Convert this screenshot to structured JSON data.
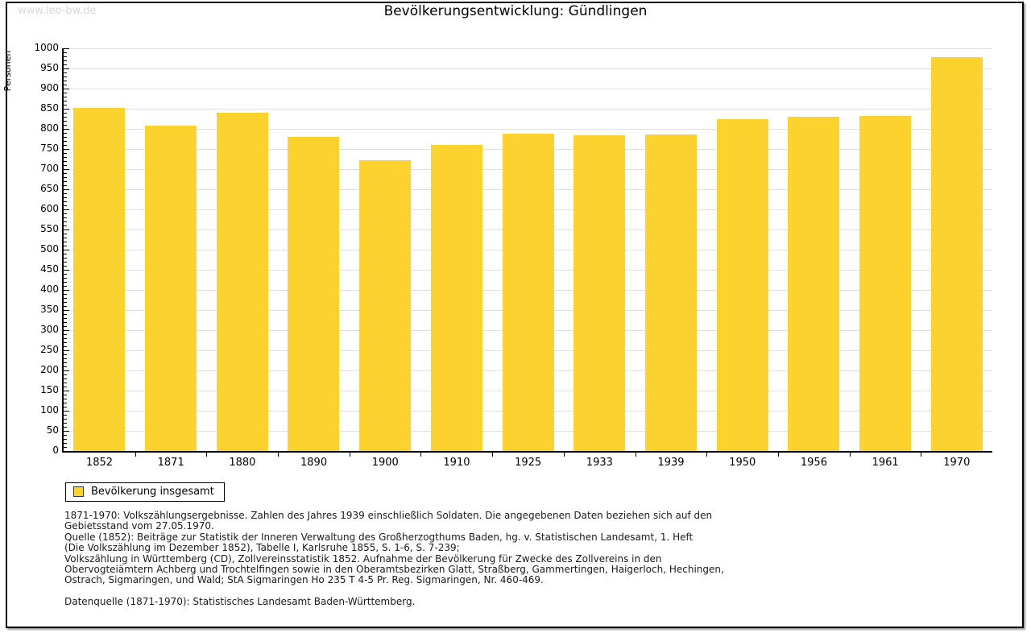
{
  "watermark": "www.leo-bw.de",
  "title": "Bevölkerungsentwicklung: Gündlingen",
  "chart_data": {
    "type": "bar",
    "title": "Bevölkerungsentwicklung: Gündlingen",
    "xlabel": "",
    "ylabel": "Personen",
    "categories": [
      "1852",
      "1871",
      "1880",
      "1890",
      "1900",
      "1910",
      "1925",
      "1933",
      "1939",
      "1950",
      "1956",
      "1961",
      "1970"
    ],
    "values": [
      852,
      808,
      840,
      780,
      722,
      761,
      789,
      785,
      787,
      824,
      831,
      833,
      978
    ],
    "series_name": "Bevölkerung insgesamt",
    "ylim": [
      0,
      1000
    ],
    "ytick_step": 50,
    "yminor_step": 10,
    "grid": true,
    "legend_position": "bottom-left",
    "bar_color": "#fcd32e",
    "grid_color": "#e0e0e0"
  },
  "legend": {
    "label": "Bevölkerung insgesamt",
    "swatch_color": "#fcd32e"
  },
  "footnotes": {
    "lines": [
      "1871-1970: Volkszählungsergebnisse. Zahlen des Jahres 1939 einschließlich Soldaten. Die angegebenen Daten beziehen sich auf den",
      "Gebietsstand vom 27.05.1970.",
      "Quelle (1852): Beiträge zur Statistik der Inneren Verwaltung des Großherzogthums Baden, hg. v. Statistischen Landesamt, 1. Heft",
      "(Die Volkszählung im Dezember 1852), Tabelle I, Karlsruhe 1855, S. 1-6, S. 7-239;",
      "Volkszählung in Württemberg (CD), Zollvereinsstatistik 1852. Aufnahme der Bevölkerung für Zwecke des Zollvereins in den",
      "Obervogteiämtern Achberg und Trochtelfingen sowie in den Oberamtsbezirken Glatt, Straßberg, Gammertingen, Haigerloch, Hechingen,",
      "Ostrach, Sigmaringen, und Wald; StA Sigmaringen Ho 235 T 4-5 Pr. Reg. Sigmaringen, Nr. 460-469."
    ],
    "datasource": "Datenquelle (1871-1970): Statistisches Landesamt Baden-Württemberg."
  }
}
